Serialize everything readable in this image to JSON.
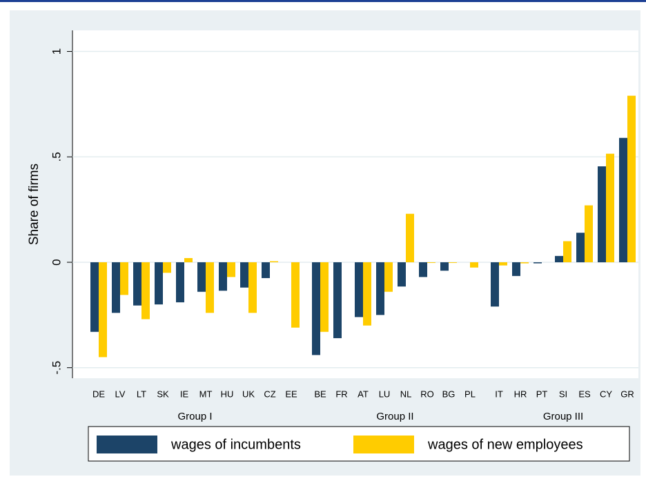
{
  "chart_data": {
    "type": "bar",
    "ylabel": "Share of firms",
    "ylim": [
      -0.55,
      1.1
    ],
    "yticks": [
      {
        "value": -0.5,
        "label": "-.5"
      },
      0,
      {
        "value": 0.5,
        "label": ".5"
      },
      1
    ],
    "grid": true,
    "series": [
      {
        "name": "wages of incumbents",
        "color": "#1c4468"
      },
      {
        "name": "wages of new employees",
        "color": "#ffcc00"
      }
    ],
    "groups": [
      {
        "label": "Group I",
        "categories": [
          "DE",
          "LV",
          "LT",
          "SK",
          "IE",
          "MT",
          "HU",
          "UK",
          "CZ",
          "EE"
        ],
        "values": [
          [
            -0.33,
            -0.24,
            -0.205,
            -0.2,
            -0.19,
            -0.14,
            -0.135,
            -0.12,
            -0.075,
            0
          ],
          [
            -0.45,
            -0.155,
            -0.27,
            -0.05,
            0.02,
            -0.24,
            -0.07,
            -0.24,
            0.005,
            -0.31
          ]
        ]
      },
      {
        "label": "Group II",
        "categories": [
          "BE",
          "FR",
          "AT",
          "LU",
          "NL",
          "RO",
          "BG",
          "PL"
        ],
        "values": [
          [
            -0.44,
            -0.36,
            -0.26,
            -0.25,
            -0.115,
            -0.07,
            -0.04,
            0
          ],
          [
            -0.33,
            0,
            -0.3,
            -0.14,
            0.23,
            -0.003,
            -0.003,
            -0.025
          ]
        ]
      },
      {
        "label": "Group III",
        "categories": [
          "IT",
          "HR",
          "PT",
          "SI",
          "ES",
          "CY",
          "GR"
        ],
        "values": [
          [
            -0.21,
            -0.065,
            -0.005,
            0.03,
            0.14,
            0.455,
            0.59
          ],
          [
            -0.015,
            -0.005,
            0,
            0.1,
            0.27,
            0.515,
            0.79
          ]
        ]
      }
    ]
  }
}
